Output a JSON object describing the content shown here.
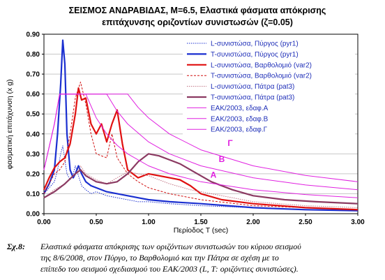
{
  "chart_data": {
    "type": "line",
    "title_lines": [
      "ΣΕΙΣΜΟΣ ΑΝΔΡΑΒΙΔΑΣ, M=6.5, Ελαστικά φάσματα απόκρισης",
      "επιτάχυνσης οριζοντίων συνιστωσών (ζ=0.05)"
    ],
    "xlabel": "Περίοδος T (sec)",
    "ylabel": "φασματική επιτάχυνση (x g)",
    "xlim": [
      0,
      3
    ],
    "ylim": [
      0,
      0.9
    ],
    "x_ticks": [
      "0.00",
      "0.50",
      "1.00",
      "1.50",
      "2.00",
      "2.50",
      "3.00"
    ],
    "x_tick_values": [
      0,
      0.5,
      1,
      1.5,
      2,
      2.5,
      3
    ],
    "y_ticks": [
      "0.00",
      "0.10",
      "0.20",
      "0.30",
      "0.40",
      "0.50",
      "0.60",
      "0.70",
      "0.80",
      "0.90"
    ],
    "y_tick_values": [
      0,
      0.1,
      0.2,
      0.3,
      0.4,
      0.5,
      0.6,
      0.7,
      0.8,
      0.9
    ],
    "grid": "horizontal",
    "legend_position": "top-right",
    "series": [
      {
        "name": "L-συνιστώσα, Πύργος (pyr1)",
        "color": "#1a2fd0",
        "style": "dotted",
        "width": 1,
        "x": [
          0,
          0.05,
          0.1,
          0.13,
          0.16,
          0.18,
          0.2,
          0.22,
          0.25,
          0.28,
          0.3,
          0.33,
          0.36,
          0.4,
          0.45,
          0.5,
          0.6,
          0.7,
          0.8,
          0.9,
          1.0,
          1.2,
          1.5,
          2.0,
          2.5,
          3.0
        ],
        "y": [
          0.1,
          0.13,
          0.16,
          0.22,
          0.3,
          0.34,
          0.27,
          0.2,
          0.17,
          0.2,
          0.24,
          0.19,
          0.14,
          0.12,
          0.1,
          0.11,
          0.09,
          0.08,
          0.07,
          0.06,
          0.06,
          0.05,
          0.04,
          0.03,
          0.02,
          0.015
        ]
      },
      {
        "name": "T-συνιστώσα, Πύργος (pyr1)",
        "color": "#1a2fd0",
        "style": "solid",
        "width": 2.2,
        "x": [
          0,
          0.05,
          0.1,
          0.13,
          0.16,
          0.18,
          0.2,
          0.22,
          0.25,
          0.28,
          0.3,
          0.33,
          0.36,
          0.4,
          0.45,
          0.5,
          0.6,
          0.7,
          0.8,
          0.9,
          1.0,
          1.2,
          1.5,
          2.0,
          2.5,
          3.0
        ],
        "y": [
          0.1,
          0.15,
          0.22,
          0.4,
          0.65,
          0.87,
          0.75,
          0.4,
          0.22,
          0.18,
          0.2,
          0.24,
          0.2,
          0.16,
          0.14,
          0.13,
          0.11,
          0.1,
          0.09,
          0.08,
          0.07,
          0.06,
          0.05,
          0.03,
          0.02,
          0.015
        ]
      },
      {
        "name": "L-συνιστώσα, Βαρθολομιό (var2)",
        "color": "#e01010",
        "style": "solid",
        "width": 2.2,
        "x": [
          0,
          0.05,
          0.1,
          0.15,
          0.2,
          0.25,
          0.3,
          0.33,
          0.36,
          0.4,
          0.45,
          0.5,
          0.55,
          0.6,
          0.65,
          0.7,
          0.75,
          0.8,
          0.9,
          1.0,
          1.1,
          1.2,
          1.3,
          1.4,
          1.5,
          1.7,
          2.0,
          2.5,
          3.0
        ],
        "y": [
          0.12,
          0.18,
          0.23,
          0.26,
          0.28,
          0.35,
          0.5,
          0.63,
          0.57,
          0.58,
          0.45,
          0.4,
          0.45,
          0.36,
          0.45,
          0.52,
          0.35,
          0.22,
          0.18,
          0.2,
          0.19,
          0.18,
          0.17,
          0.14,
          0.1,
          0.07,
          0.05,
          0.03,
          0.02
        ]
      },
      {
        "name": "T-συνιστώσα, Βαρθολομιό (var2)",
        "color": "#d01010",
        "style": "dashed",
        "width": 1,
        "x": [
          0,
          0.05,
          0.1,
          0.15,
          0.2,
          0.25,
          0.3,
          0.35,
          0.4,
          0.45,
          0.5,
          0.6,
          0.65,
          0.7,
          0.8,
          0.9,
          1.0,
          1.2,
          1.5,
          2.0,
          2.5,
          3.0
        ],
        "y": [
          0.1,
          0.15,
          0.2,
          0.22,
          0.26,
          0.4,
          0.58,
          0.66,
          0.55,
          0.4,
          0.3,
          0.28,
          0.4,
          0.28,
          0.2,
          0.16,
          0.13,
          0.1,
          0.07,
          0.04,
          0.03,
          0.02
        ]
      },
      {
        "name": "L-συνιστώσα, Πάτρα (pat3)",
        "color": "#c07080",
        "style": "dotted",
        "width": 1,
        "x": [
          0,
          0.1,
          0.2,
          0.3,
          0.35,
          0.4,
          0.5,
          0.6,
          0.7,
          0.8,
          0.9,
          1.0,
          1.1,
          1.2,
          1.4,
          1.6,
          2.0,
          2.5,
          3.0
        ],
        "y": [
          0.08,
          0.12,
          0.15,
          0.2,
          0.24,
          0.2,
          0.17,
          0.15,
          0.18,
          0.21,
          0.2,
          0.19,
          0.17,
          0.15,
          0.12,
          0.1,
          0.06,
          0.04,
          0.03
        ]
      },
      {
        "name": "T-συνιστώσα, Πάτρα (pat3)",
        "color": "#8b3a62",
        "style": "solid",
        "width": 2.2,
        "x": [
          0,
          0.1,
          0.2,
          0.3,
          0.35,
          0.4,
          0.5,
          0.6,
          0.7,
          0.8,
          0.9,
          1.0,
          1.1,
          1.2,
          1.3,
          1.4,
          1.6,
          1.8,
          2.0,
          2.3,
          2.6,
          3.0
        ],
        "y": [
          0.08,
          0.11,
          0.15,
          0.2,
          0.22,
          0.19,
          0.16,
          0.15,
          0.16,
          0.2,
          0.26,
          0.3,
          0.29,
          0.27,
          0.25,
          0.22,
          0.16,
          0.12,
          0.09,
          0.07,
          0.06,
          0.05
        ]
      },
      {
        "name": "ΕΑΚ/2003, εδαφ.Α",
        "color": "#e020e0",
        "style": "solid",
        "width": 1,
        "x": [
          0,
          0.1,
          0.15,
          0.4,
          0.5,
          0.6,
          0.7,
          0.8,
          1.0,
          1.2,
          1.5,
          2.0,
          2.5,
          3.0
        ],
        "y": [
          0.22,
          0.45,
          0.6,
          0.6,
          0.48,
          0.4,
          0.343,
          0.3,
          0.24,
          0.2,
          0.16,
          0.12,
          0.096,
          0.08
        ]
      },
      {
        "name": "ΕΑΚ/2003, εδαφ.Β",
        "color": "#e020e0",
        "style": "solid",
        "width": 1,
        "x": [
          0,
          0.1,
          0.15,
          0.6,
          0.7,
          0.8,
          1.0,
          1.2,
          1.5,
          2.0,
          2.5,
          3.0
        ],
        "y": [
          0.22,
          0.45,
          0.6,
          0.6,
          0.514,
          0.45,
          0.36,
          0.3,
          0.24,
          0.18,
          0.144,
          0.12
        ]
      },
      {
        "name": "ΕΑΚ/2003, εδαφ.Γ",
        "color": "#e020e0",
        "style": "solid",
        "width": 1,
        "x": [
          0,
          0.1,
          0.15,
          0.8,
          0.9,
          1.0,
          1.2,
          1.5,
          2.0,
          2.5,
          3.0
        ],
        "y": [
          0.22,
          0.45,
          0.6,
          0.6,
          0.533,
          0.48,
          0.4,
          0.32,
          0.24,
          0.192,
          0.16
        ]
      }
    ],
    "annotations": [
      {
        "text": "Γ",
        "x": 1.78,
        "y": 0.34
      },
      {
        "text": "Β",
        "x": 1.7,
        "y": 0.26
      },
      {
        "text": "Α",
        "x": 1.62,
        "y": 0.18
      }
    ]
  },
  "caption": {
    "label": "Σχ.8:",
    "lines": [
      "Ελαστικά φάσματα απόκρισης των οριζόντιων συνιστωσών του κύριου σεισμού",
      "της 8/6/2008, στον Πύργο, το Βαρθολομιό και την Πάτρα σε σχέση με το",
      "επίπεδο του σεισμού σχεδιασμού του ΕΑΚ/2003 (L, T: οριζόντιες συνιστώσες)."
    ]
  }
}
